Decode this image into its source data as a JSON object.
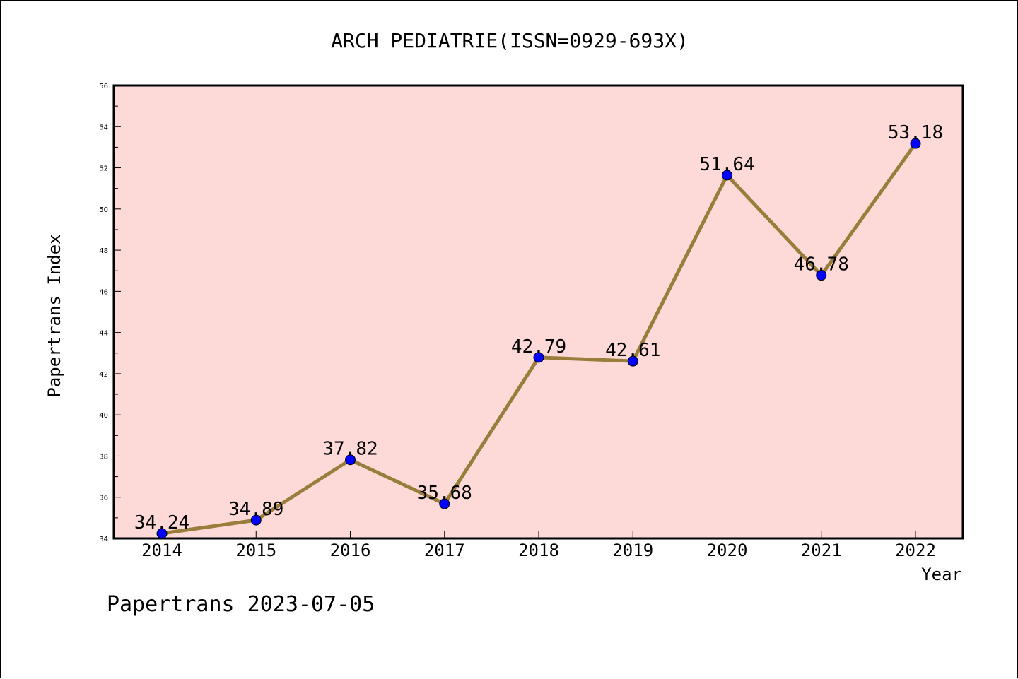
{
  "chart_data": {
    "type": "line",
    "title": "ARCH PEDIATRIE(ISSN=0929-693X)",
    "xlabel": "Year",
    "ylabel": "Papertrans Index",
    "categories": [
      "2014",
      "2015",
      "2016",
      "2017",
      "2018",
      "2019",
      "2020",
      "2021",
      "2022"
    ],
    "values": [
      34.24,
      34.89,
      37.82,
      35.68,
      42.79,
      42.61,
      51.64,
      46.78,
      53.18
    ],
    "value_labels": [
      "34.24",
      "34.89",
      "37.82",
      "35.68",
      "42.79",
      "42.61",
      "51.64",
      "46.78",
      "53.18"
    ],
    "ylim": [
      34,
      56
    ],
    "yticks": [
      "34",
      "36",
      "38",
      "40",
      "42",
      "44",
      "46",
      "48",
      "50",
      "52",
      "54",
      "56"
    ],
    "grid": false,
    "legend": "none",
    "colors": {
      "plot_background": "#fddad8",
      "line": "#9a7d3a",
      "marker": "#0000ff"
    }
  },
  "footer": "Papertrans 2023-07-05"
}
